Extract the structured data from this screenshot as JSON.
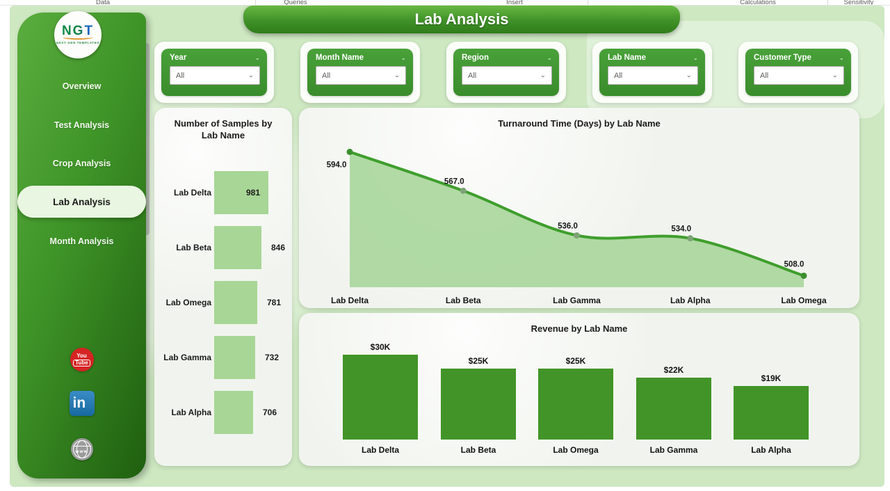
{
  "ribbon": {
    "tabs": [
      "Data",
      "Queries",
      "Insert",
      "Calculations",
      "Sensitivity"
    ]
  },
  "header": {
    "title": "Lab Analysis"
  },
  "logo": {
    "text": "NGT",
    "subtext": "NEXT GEN TEMPLATES"
  },
  "sidebar": {
    "items": [
      {
        "label": "Overview",
        "active": false
      },
      {
        "label": "Test Analysis",
        "active": false
      },
      {
        "label": "Crop Analysis",
        "active": false
      },
      {
        "label": "Lab Analysis",
        "active": true
      },
      {
        "label": "Month Analysis",
        "active": false
      }
    ]
  },
  "social": [
    {
      "name": "youtube-icon",
      "line1": "You",
      "line2": "Tube"
    },
    {
      "name": "linkedin-icon",
      "glyph": "in"
    },
    {
      "name": "website-globe-icon",
      "glyph": "www"
    }
  ],
  "filters": [
    {
      "label": "Year",
      "value": "All"
    },
    {
      "label": "Month Name",
      "value": "All"
    },
    {
      "label": "Region",
      "value": "All"
    },
    {
      "label": "Lab Name",
      "value": "All"
    },
    {
      "label": "Customer Type",
      "value": "All"
    }
  ],
  "colors": {
    "canvas": "#cee8c2",
    "sidebar_from": "#5aad3e",
    "sidebar_to": "#1f5f0f",
    "accent_dark": "#429428",
    "accent_light": "#a8d696",
    "line": "#3f9e2d",
    "area_fill": "#a9d69b"
  },
  "chart_data": [
    {
      "type": "bar",
      "orientation": "horizontal",
      "title": "Number of Samples by Lab Name",
      "categories": [
        "Lab Delta",
        "Lab Beta",
        "Lab Omega",
        "Lab Gamma",
        "Lab Alpha"
      ],
      "values": [
        981,
        846,
        781,
        732,
        706
      ],
      "value_labels": [
        "981",
        "846",
        "781",
        "732",
        "706"
      ],
      "xlim": [
        0,
        1000
      ],
      "grid": false
    },
    {
      "type": "area",
      "title": "Turnaround Time (Days) by Lab Name",
      "categories": [
        "Lab Delta",
        "Lab Beta",
        "Lab Gamma",
        "Lab Alpha",
        "Lab Omega"
      ],
      "values": [
        594.0,
        567.0,
        536.0,
        534.0,
        508.0
      ],
      "value_labels": [
        "594.0",
        "567.0",
        "536.0",
        "534.0",
        "508.0"
      ],
      "ylim": [
        500,
        600
      ],
      "grid": false,
      "markers": true
    },
    {
      "type": "bar",
      "title": "Revenue by Lab Name",
      "categories": [
        "Lab Delta",
        "Lab Beta",
        "Lab Omega",
        "Lab Gamma",
        "Lab Alpha"
      ],
      "values": [
        30000,
        25000,
        25000,
        22000,
        19000
      ],
      "value_labels": [
        "$30K",
        "$25K",
        "$25K",
        "$22K",
        "$19K"
      ],
      "ylim": [
        0,
        33000
      ],
      "grid": false
    }
  ]
}
